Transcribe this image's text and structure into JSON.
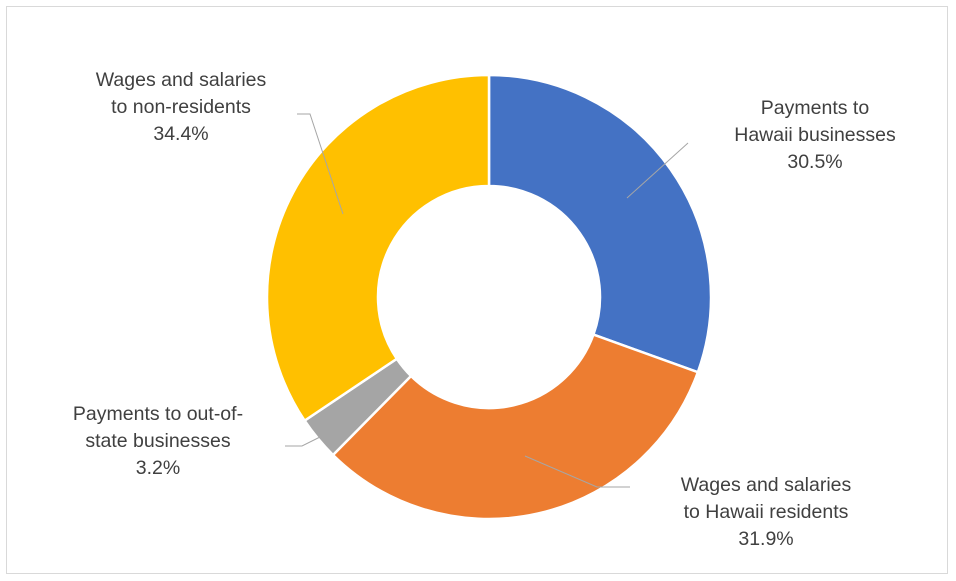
{
  "chart_data": {
    "type": "pie",
    "donut": true,
    "title": "",
    "slices": [
      {
        "label_lines": [
          "Payments to",
          "Hawaii businesses"
        ],
        "value": 30.5,
        "value_label": "30.5%",
        "color": "#4472c4"
      },
      {
        "label_lines": [
          "Wages and salaries",
          "to Hawaii residents"
        ],
        "value": 31.9,
        "value_label": "31.9%",
        "color": "#ed7d31"
      },
      {
        "label_lines": [
          "Payments to out-of-",
          "state businesses"
        ],
        "value": 3.2,
        "value_label": "3.2%",
        "color": "#a5a5a5"
      },
      {
        "label_lines": [
          "Wages and salaries",
          "to non-residents"
        ],
        "value": 34.4,
        "value_label": "34.4%",
        "color": "#ffc000"
      }
    ],
    "legend": "none",
    "start_angle_deg": 0,
    "direction": "clockwise"
  }
}
